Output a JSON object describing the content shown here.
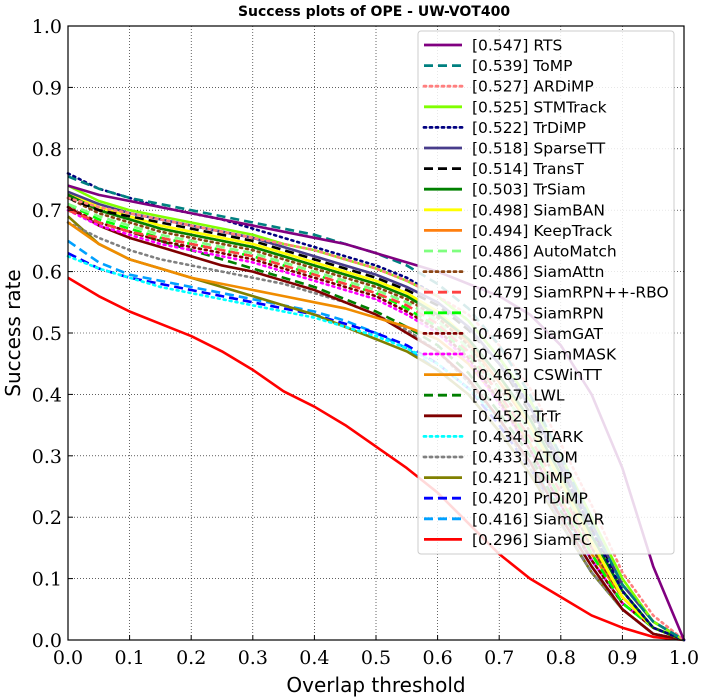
{
  "chart_data": {
    "type": "line",
    "title": "Success plots of OPE - UW-VOT400",
    "xlabel": "Overlap threshold",
    "ylabel": "Success rate",
    "xlim": [
      0,
      1
    ],
    "ylim": [
      0,
      1.0
    ],
    "xticks": [
      "0.0",
      "0.1",
      "0.2",
      "0.3",
      "0.4",
      "0.5",
      "0.6",
      "0.7",
      "0.8",
      "0.9",
      "1.0"
    ],
    "yticks": [
      "0.0",
      "0.1",
      "0.2",
      "0.3",
      "0.4",
      "0.5",
      "0.6",
      "0.7",
      "0.8",
      "0.9",
      "1.0"
    ],
    "grid": true,
    "legend_position": "upper-right",
    "x": [
      0,
      0.05,
      0.1,
      0.15,
      0.2,
      0.25,
      0.3,
      0.35,
      0.4,
      0.45,
      0.5,
      0.55,
      0.6,
      0.65,
      0.7,
      0.75,
      0.8,
      0.85,
      0.9,
      0.95,
      1.0
    ],
    "series": [
      {
        "name": "[0.547] RTS",
        "color": "#800080",
        "dash": "solid",
        "values": [
          0.74,
          0.725,
          0.715,
          0.705,
          0.695,
          0.685,
          0.675,
          0.665,
          0.655,
          0.645,
          0.63,
          0.615,
          0.6,
          0.58,
          0.56,
          0.53,
          0.48,
          0.4,
          0.28,
          0.12,
          0.0
        ]
      },
      {
        "name": "[0.539] ToMP",
        "color": "#008080",
        "dash": "dashed",
        "values": [
          0.755,
          0.735,
          0.72,
          0.71,
          0.7,
          0.69,
          0.68,
          0.67,
          0.66,
          0.645,
          0.63,
          0.61,
          0.58,
          0.54,
          0.48,
          0.4,
          0.3,
          0.19,
          0.09,
          0.03,
          0.0
        ]
      },
      {
        "name": "[0.527] ARDiMP",
        "color": "#ff7f7f",
        "dash": "dotted",
        "values": [
          0.72,
          0.705,
          0.695,
          0.685,
          0.675,
          0.665,
          0.655,
          0.645,
          0.635,
          0.62,
          0.605,
          0.585,
          0.56,
          0.53,
          0.48,
          0.41,
          0.32,
          0.22,
          0.11,
          0.04,
          0.0
        ]
      },
      {
        "name": "[0.525] STMTrack",
        "color": "#80ff00",
        "dash": "solid",
        "values": [
          0.74,
          0.715,
          0.7,
          0.69,
          0.68,
          0.67,
          0.66,
          0.645,
          0.635,
          0.62,
          0.605,
          0.585,
          0.56,
          0.52,
          0.46,
          0.39,
          0.3,
          0.2,
          0.1,
          0.03,
          0.0
        ]
      },
      {
        "name": "[0.522] TrDiMP",
        "color": "#000080",
        "dash": "dotted",
        "values": [
          0.76,
          0.735,
          0.72,
          0.705,
          0.695,
          0.685,
          0.67,
          0.655,
          0.64,
          0.625,
          0.61,
          0.59,
          0.56,
          0.52,
          0.46,
          0.38,
          0.28,
          0.18,
          0.08,
          0.02,
          0.0
        ]
      },
      {
        "name": "[0.518] SparseTT",
        "color": "#483d8b",
        "dash": "solid",
        "values": [
          0.73,
          0.71,
          0.695,
          0.685,
          0.675,
          0.665,
          0.655,
          0.64,
          0.625,
          0.61,
          0.595,
          0.575,
          0.55,
          0.51,
          0.45,
          0.38,
          0.29,
          0.19,
          0.09,
          0.03,
          0.0
        ]
      },
      {
        "name": "[0.514] TransT",
        "color": "#000000",
        "dash": "dashed",
        "values": [
          0.72,
          0.7,
          0.69,
          0.68,
          0.67,
          0.66,
          0.65,
          0.635,
          0.62,
          0.605,
          0.59,
          0.57,
          0.545,
          0.505,
          0.45,
          0.37,
          0.28,
          0.18,
          0.09,
          0.03,
          0.0
        ]
      },
      {
        "name": "[0.503] TrSiam",
        "color": "#008000",
        "dash": "solid",
        "values": [
          0.725,
          0.7,
          0.685,
          0.67,
          0.66,
          0.65,
          0.64,
          0.625,
          0.61,
          0.595,
          0.58,
          0.56,
          0.53,
          0.49,
          0.43,
          0.36,
          0.27,
          0.17,
          0.08,
          0.02,
          0.0
        ]
      },
      {
        "name": "[0.498] SiamBAN",
        "color": "#ffff00",
        "dash": "solid",
        "values": [
          0.73,
          0.705,
          0.69,
          0.675,
          0.665,
          0.655,
          0.645,
          0.63,
          0.615,
          0.6,
          0.585,
          0.565,
          0.535,
          0.49,
          0.43,
          0.35,
          0.26,
          0.16,
          0.07,
          0.02,
          0.0
        ]
      },
      {
        "name": "[0.494] KeepTrack",
        "color": "#ff7f0e",
        "dash": "solid",
        "values": [
          0.725,
          0.7,
          0.685,
          0.67,
          0.66,
          0.65,
          0.64,
          0.625,
          0.61,
          0.595,
          0.58,
          0.56,
          0.53,
          0.485,
          0.42,
          0.35,
          0.26,
          0.16,
          0.07,
          0.02,
          0.0
        ]
      },
      {
        "name": "[0.486] AutoMatch",
        "color": "#7fff7f",
        "dash": "dashed",
        "values": [
          0.71,
          0.69,
          0.675,
          0.66,
          0.65,
          0.64,
          0.63,
          0.615,
          0.6,
          0.585,
          0.57,
          0.55,
          0.52,
          0.475,
          0.41,
          0.34,
          0.25,
          0.16,
          0.07,
          0.02,
          0.0
        ]
      },
      {
        "name": "[0.486] SiamAttn",
        "color": "#8b4513",
        "dash": "dotted",
        "values": [
          0.72,
          0.695,
          0.68,
          0.665,
          0.655,
          0.645,
          0.635,
          0.62,
          0.605,
          0.59,
          0.575,
          0.555,
          0.525,
          0.48,
          0.41,
          0.34,
          0.25,
          0.15,
          0.07,
          0.02,
          0.0
        ]
      },
      {
        "name": "[0.479] SiamRPN++-RBO",
        "color": "#ff4040",
        "dash": "dashed",
        "values": [
          0.7,
          0.68,
          0.665,
          0.655,
          0.645,
          0.635,
          0.625,
          0.61,
          0.595,
          0.58,
          0.565,
          0.545,
          0.515,
          0.47,
          0.4,
          0.33,
          0.24,
          0.15,
          0.07,
          0.02,
          0.0
        ]
      },
      {
        "name": "[0.475] SiamRPN",
        "color": "#00ff00",
        "dash": "dashed",
        "values": [
          0.71,
          0.685,
          0.67,
          0.655,
          0.645,
          0.635,
          0.625,
          0.61,
          0.595,
          0.58,
          0.565,
          0.54,
          0.51,
          0.465,
          0.4,
          0.32,
          0.23,
          0.14,
          0.06,
          0.02,
          0.0
        ]
      },
      {
        "name": "[0.469] SiamGAT",
        "color": "#800000",
        "dash": "dotted",
        "values": [
          0.705,
          0.68,
          0.665,
          0.65,
          0.64,
          0.63,
          0.62,
          0.605,
          0.59,
          0.575,
          0.56,
          0.535,
          0.505,
          0.46,
          0.39,
          0.31,
          0.22,
          0.13,
          0.06,
          0.02,
          0.0
        ]
      },
      {
        "name": "[0.467] SiamMASK",
        "color": "#ff00ff",
        "dash": "dotted",
        "values": [
          0.7,
          0.675,
          0.66,
          0.645,
          0.635,
          0.625,
          0.615,
          0.6,
          0.585,
          0.57,
          0.555,
          0.53,
          0.5,
          0.455,
          0.385,
          0.31,
          0.22,
          0.13,
          0.06,
          0.02,
          0.0
        ]
      },
      {
        "name": "[0.463] CSWinTT",
        "color": "#f08c00",
        "dash": "solid",
        "values": [
          0.68,
          0.645,
          0.62,
          0.605,
          0.59,
          0.58,
          0.57,
          0.56,
          0.55,
          0.54,
          0.525,
          0.51,
          0.49,
          0.45,
          0.39,
          0.32,
          0.23,
          0.14,
          0.07,
          0.02,
          0.0
        ]
      },
      {
        "name": "[0.457] LWL",
        "color": "#007f00",
        "dash": "dashed",
        "values": [
          0.7,
          0.68,
          0.665,
          0.65,
          0.635,
          0.62,
          0.605,
          0.59,
          0.575,
          0.555,
          0.535,
          0.51,
          0.48,
          0.435,
          0.37,
          0.3,
          0.21,
          0.13,
          0.06,
          0.02,
          0.0
        ]
      },
      {
        "name": "[0.452] TrTr",
        "color": "#7f0000",
        "dash": "solid",
        "values": [
          0.705,
          0.675,
          0.655,
          0.64,
          0.625,
          0.61,
          0.6,
          0.585,
          0.57,
          0.55,
          0.53,
          0.5,
          0.47,
          0.425,
          0.36,
          0.29,
          0.2,
          0.12,
          0.05,
          0.01,
          0.0
        ]
      },
      {
        "name": "[0.434] STARK",
        "color": "#00ffff",
        "dash": "dotted",
        "values": [
          0.625,
          0.605,
          0.59,
          0.575,
          0.565,
          0.555,
          0.545,
          0.535,
          0.525,
          0.51,
          0.495,
          0.475,
          0.45,
          0.41,
          0.36,
          0.29,
          0.21,
          0.13,
          0.06,
          0.02,
          0.0
        ]
      },
      {
        "name": "[0.433] ATOM",
        "color": "#808080",
        "dash": "dotted",
        "values": [
          0.68,
          0.655,
          0.635,
          0.62,
          0.61,
          0.6,
          0.59,
          0.58,
          0.565,
          0.55,
          0.53,
          0.505,
          0.47,
          0.42,
          0.36,
          0.28,
          0.19,
          0.11,
          0.05,
          0.01,
          0.0
        ]
      },
      {
        "name": "[0.421] DiMP",
        "color": "#808000",
        "dash": "solid",
        "values": [
          0.69,
          0.645,
          0.62,
          0.605,
          0.59,
          0.575,
          0.56,
          0.545,
          0.53,
          0.51,
          0.49,
          0.47,
          0.44,
          0.4,
          0.34,
          0.27,
          0.19,
          0.11,
          0.05,
          0.01,
          0.0
        ]
      },
      {
        "name": "[0.420] PrDiMP",
        "color": "#0000ff",
        "dash": "dashed",
        "values": [
          0.63,
          0.605,
          0.59,
          0.58,
          0.57,
          0.56,
          0.55,
          0.54,
          0.53,
          0.515,
          0.5,
          0.48,
          0.45,
          0.41,
          0.35,
          0.28,
          0.2,
          0.12,
          0.05,
          0.01,
          0.0
        ]
      },
      {
        "name": "[0.416] SiamCAR",
        "color": "#00a0ff",
        "dash": "dashed",
        "values": [
          0.65,
          0.615,
          0.595,
          0.585,
          0.575,
          0.565,
          0.555,
          0.545,
          0.535,
          0.52,
          0.5,
          0.475,
          0.44,
          0.4,
          0.34,
          0.27,
          0.19,
          0.11,
          0.05,
          0.01,
          0.0
        ]
      },
      {
        "name": "[0.296] SiamFC",
        "color": "#ff0000",
        "dash": "solid",
        "values": [
          0.59,
          0.56,
          0.535,
          0.515,
          0.495,
          0.47,
          0.44,
          0.405,
          0.38,
          0.35,
          0.315,
          0.28,
          0.24,
          0.19,
          0.14,
          0.1,
          0.07,
          0.04,
          0.02,
          0.005,
          0.0
        ]
      }
    ]
  }
}
